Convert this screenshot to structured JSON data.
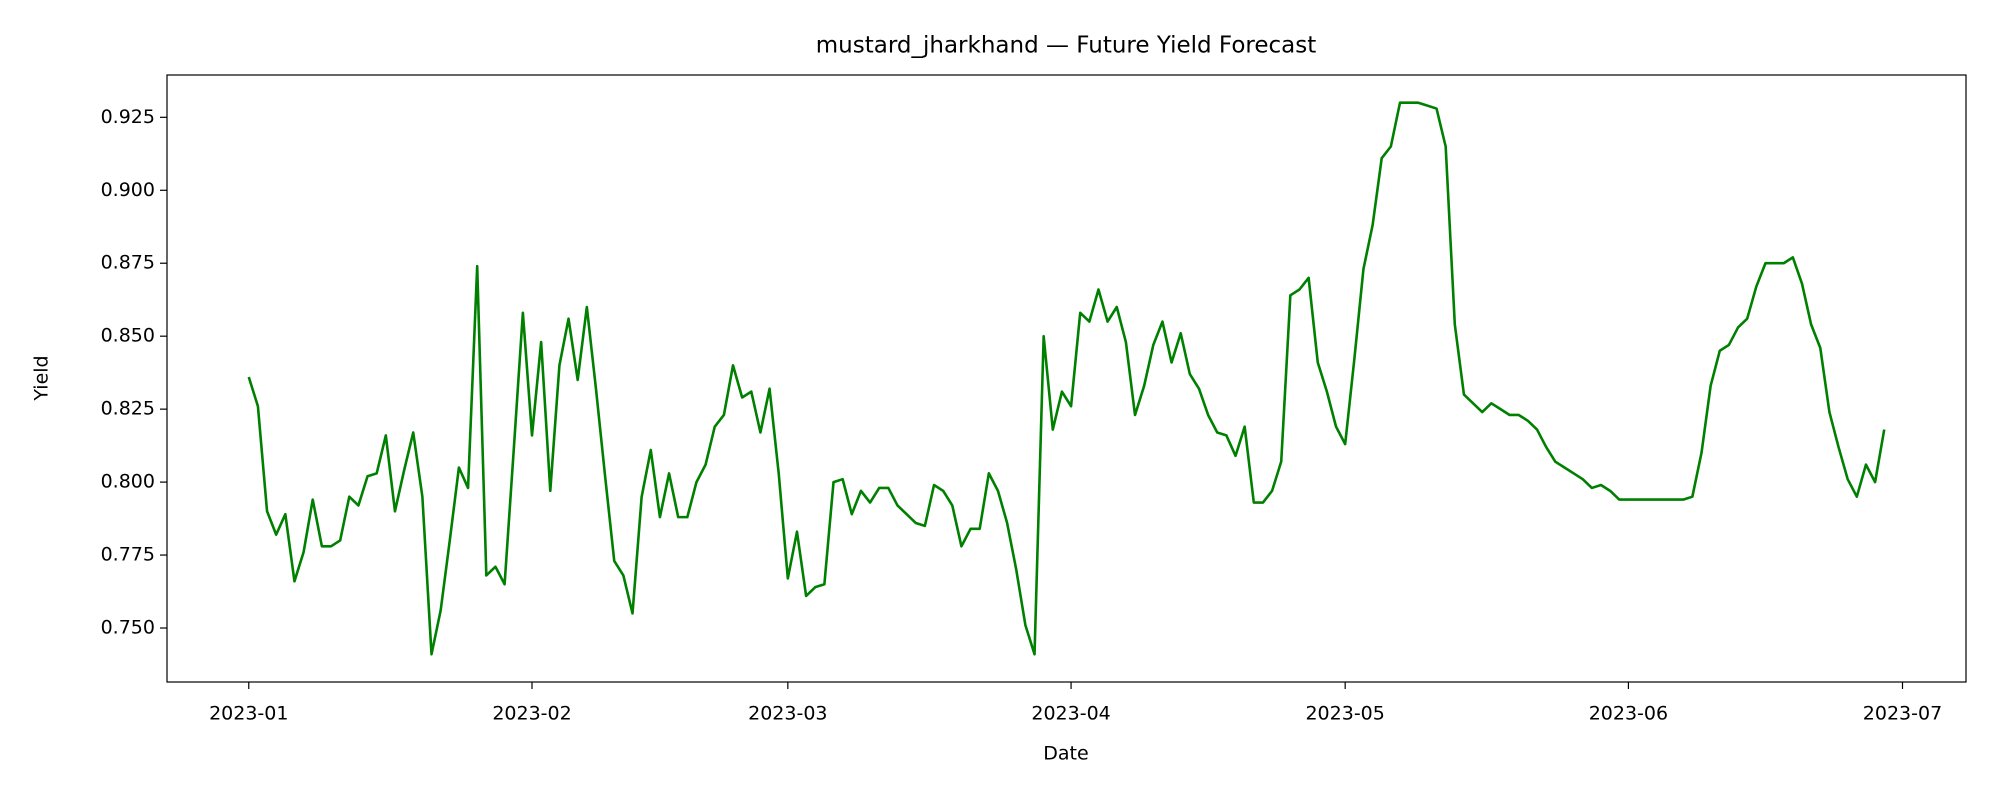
{
  "chart_data": {
    "type": "line",
    "title": "mustard_jharkhand — Future Yield Forecast",
    "x_label": "Date",
    "y_label": "Yield",
    "xlim": [
      -8.95,
      187.95
    ],
    "xticks": [
      {
        "value": 0,
        "label": "2023-01"
      },
      {
        "value": 31,
        "label": "2023-02"
      },
      {
        "value": 59,
        "label": "2023-03"
      },
      {
        "value": 90,
        "label": "2023-04"
      },
      {
        "value": 120,
        "label": "2023-05"
      },
      {
        "value": 151,
        "label": "2023-06"
      },
      {
        "value": 181,
        "label": "2023-07"
      }
    ],
    "ylim": [
      0.7315,
      0.9395
    ],
    "yticks": [
      {
        "value": 0.75,
        "label": "0.750"
      },
      0.775,
      {
        "value": 0.8,
        "label": "0.800"
      },
      0.825,
      {
        "value": 0.85,
        "label": "0.850"
      },
      0.875,
      {
        "value": 0.9,
        "label": "0.900"
      },
      0.925
    ],
    "grid": false,
    "series": [
      {
        "color": "#008000",
        "values": [
          0.836,
          0.826,
          0.79,
          0.782,
          0.789,
          0.766,
          0.776,
          0.794,
          0.778,
          0.778,
          0.78,
          0.795,
          0.792,
          0.802,
          0.803,
          0.816,
          0.79,
          0.804,
          0.817,
          0.795,
          0.741,
          0.756,
          0.78,
          0.805,
          0.798,
          0.874,
          0.768,
          0.771,
          0.765,
          0.811,
          0.858,
          0.816,
          0.848,
          0.797,
          0.84,
          0.856,
          0.835,
          0.86,
          0.832,
          0.802,
          0.773,
          0.768,
          0.755,
          0.795,
          0.811,
          0.788,
          0.803,
          0.788,
          0.788,
          0.8,
          0.806,
          0.819,
          0.823,
          0.84,
          0.829,
          0.831,
          0.817,
          0.832,
          0.803,
          0.767,
          0.783,
          0.761,
          0.764,
          0.765,
          0.8,
          0.801,
          0.789,
          0.797,
          0.793,
          0.798,
          0.798,
          0.792,
          0.789,
          0.786,
          0.785,
          0.799,
          0.797,
          0.792,
          0.778,
          0.784,
          0.784,
          0.803,
          0.797,
          0.786,
          0.77,
          0.751,
          0.741,
          0.85,
          0.818,
          0.831,
          0.826,
          0.858,
          0.855,
          0.866,
          0.855,
          0.86,
          0.848,
          0.823,
          0.833,
          0.847,
          0.855,
          0.841,
          0.851,
          0.837,
          0.832,
          0.823,
          0.817,
          0.816,
          0.809,
          0.819,
          0.793,
          0.793,
          0.797,
          0.807,
          0.864,
          0.866,
          0.87,
          0.841,
          0.831,
          0.819,
          0.813,
          0.842,
          0.873,
          0.888,
          0.911,
          0.915,
          0.93,
          0.93,
          0.93,
          0.929,
          0.928,
          0.915,
          0.854,
          0.83,
          0.827,
          0.824,
          0.827,
          0.825,
          0.823,
          0.823,
          0.821,
          0.818,
          0.812,
          0.807,
          0.805,
          0.803,
          0.801,
          0.798,
          0.799,
          0.797,
          0.794,
          0.794,
          0.794,
          0.794,
          0.794,
          0.794,
          0.794,
          0.794,
          0.795,
          0.81,
          0.833,
          0.845,
          0.847,
          0.853,
          0.856,
          0.867,
          0.875,
          0.875,
          0.875,
          0.877,
          0.868,
          0.854,
          0.846,
          0.824,
          0.812,
          0.801,
          0.795,
          0.806,
          0.8,
          0.818
        ]
      }
    ]
  }
}
